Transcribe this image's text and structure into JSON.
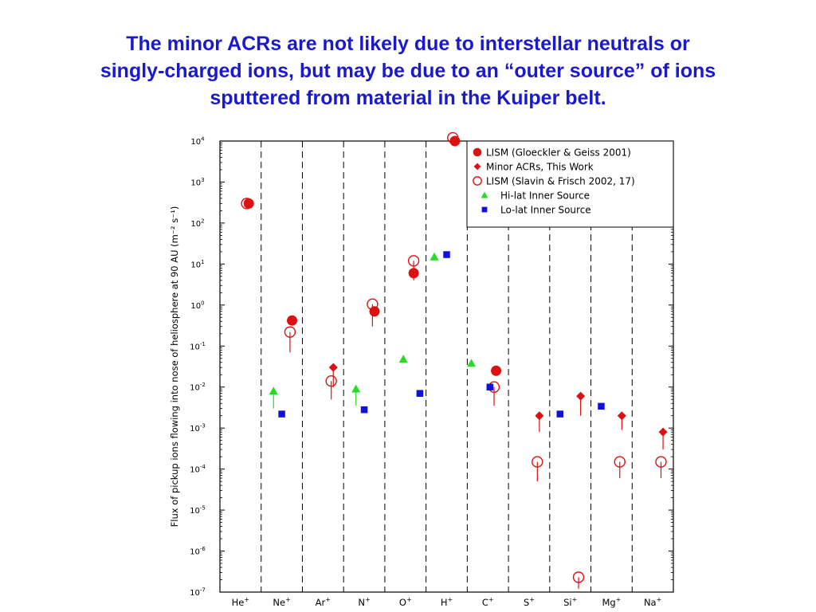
{
  "slide": {
    "title_lines": [
      "The minor ACRs are not likely due to interstellar neutrals or",
      "singly-charged ions, but may be due to an “outer source” of ions",
      "sputtered from material in the Kuiper belt."
    ]
  },
  "chart_data": {
    "type": "scatter",
    "categories": [
      {
        "base": "He",
        "sup": "+"
      },
      {
        "base": "Ne",
        "sup": "+"
      },
      {
        "base": "Ar",
        "sup": "+"
      },
      {
        "base": "N",
        "sup": "+"
      },
      {
        "base": "O",
        "sup": "+"
      },
      {
        "base": "H",
        "sup": "+"
      },
      {
        "base": "C",
        "sup": "+"
      },
      {
        "base": "S",
        "sup": "+"
      },
      {
        "base": "Si",
        "sup": "+"
      },
      {
        "base": "Mg",
        "sup": "+"
      },
      {
        "base": "Na",
        "sup": "+"
      }
    ],
    "ylabel": "Flux of pickup ions flowing into nose of heliosphere at 90 AU (m⁻² s⁻¹)",
    "y_scale": "log",
    "ylim_exponent": [
      -7,
      4
    ],
    "y_ticks": [
      {
        "base": "10",
        "exp": "4"
      },
      {
        "base": "10",
        "exp": "3"
      },
      {
        "base": "10",
        "exp": "2"
      },
      {
        "base": "10",
        "exp": "1"
      },
      {
        "base": "10",
        "exp": "0"
      },
      {
        "base": "10",
        "exp": "-1"
      },
      {
        "base": "10",
        "exp": "-2"
      },
      {
        "base": "10",
        "exp": "-3"
      },
      {
        "base": "10",
        "exp": "-4"
      },
      {
        "base": "10",
        "exp": "-5"
      },
      {
        "base": "10",
        "exp": "-6"
      },
      {
        "base": "10",
        "exp": "-7"
      }
    ],
    "category_separators": "dashed",
    "legend_position": "top-right",
    "series": [
      {
        "name": "LISM (Gloeckler & Geiss 2001)",
        "marker": "filled-circle",
        "color": "#dd1111",
        "points": [
          {
            "category": 0,
            "offset": 0.2,
            "y": 300
          },
          {
            "category": 1,
            "offset": 0.25,
            "y": 0.42
          },
          {
            "category": 3,
            "offset": 0.25,
            "y": 0.7
          },
          {
            "category": 4,
            "offset": 0.2,
            "y": 6
          },
          {
            "category": 5,
            "offset": 0.2,
            "y": 10000
          },
          {
            "category": 6,
            "offset": 0.2,
            "y": 0.025
          }
        ]
      },
      {
        "name": "Minor ACRs, This Work",
        "marker": "diamond",
        "color": "#dd1111",
        "points": [
          {
            "category": 2,
            "offset": 0.25,
            "y": 0.03,
            "err_low": 0.02
          },
          {
            "category": 7,
            "offset": 0.25,
            "y": 0.002,
            "err_low": 0.0012
          },
          {
            "category": 8,
            "offset": 0.25,
            "y": 0.006,
            "err_low": 0.004
          },
          {
            "category": 9,
            "offset": 0.25,
            "y": 0.002,
            "err_low": 0.0011
          },
          {
            "category": 10,
            "offset": 0.25,
            "y": 0.0008,
            "err_low": 0.0005
          }
        ]
      },
      {
        "name": "LISM (Slavin & Frisch 2002, 17)",
        "marker": "open-circle",
        "color": "#dd1111",
        "points": [
          {
            "category": 0,
            "offset": 0.15,
            "y": 300
          },
          {
            "category": 1,
            "offset": 0.2,
            "y": 0.22,
            "err_low": 0.15
          },
          {
            "category": 2,
            "offset": 0.2,
            "y": 0.014,
            "err_low": 0.009
          },
          {
            "category": 3,
            "offset": 0.2,
            "y": 1.05,
            "err_low": 0.75
          },
          {
            "category": 4,
            "offset": 0.2,
            "y": 12,
            "err_low": 8
          },
          {
            "category": 5,
            "offset": 0.15,
            "y": 12000
          },
          {
            "category": 6,
            "offset": 0.15,
            "y": 0.01,
            "err_low": 0.0065
          },
          {
            "category": 7,
            "offset": 0.2,
            "y": 0.00015,
            "err_low": 0.0001
          },
          {
            "category": 8,
            "offset": 0.2,
            "y": 2.3e-07,
            "err_low": 1.1e-07
          },
          {
            "category": 9,
            "offset": 0.2,
            "y": 0.00015,
            "err_low": 9e-05
          },
          {
            "category": 10,
            "offset": 0.2,
            "y": 0.00015,
            "err_low": 9e-05
          }
        ]
      },
      {
        "name": "Hi-lat Inner Source",
        "marker": "triangle",
        "color": "#22dd22",
        "points": [
          {
            "category": 1,
            "offset": -0.2,
            "y": 0.008,
            "err_low": 0.005
          },
          {
            "category": 3,
            "offset": -0.2,
            "y": 0.009,
            "err_low": 0.0055
          },
          {
            "category": 4,
            "offset": -0.05,
            "y": 0.048
          },
          {
            "category": 5,
            "offset": -0.3,
            "y": 15
          },
          {
            "category": 6,
            "offset": -0.4,
            "y": 0.038
          }
        ]
      },
      {
        "name": "Lo-lat Inner Source",
        "marker": "square",
        "color": "#1111dd",
        "points": [
          {
            "category": 1,
            "offset": 0.0,
            "y": 0.0022
          },
          {
            "category": 3,
            "offset": -0.0,
            "y": 0.0028
          },
          {
            "category": 4,
            "offset": 0.35,
            "y": 0.007
          },
          {
            "category": 5,
            "offset": 0.0,
            "y": 17
          },
          {
            "category": 6,
            "offset": 0.05,
            "y": 0.01
          },
          {
            "category": 8,
            "offset": -0.25,
            "y": 0.0022
          },
          {
            "category": 9,
            "offset": -0.25,
            "y": 0.0034
          }
        ]
      }
    ]
  }
}
